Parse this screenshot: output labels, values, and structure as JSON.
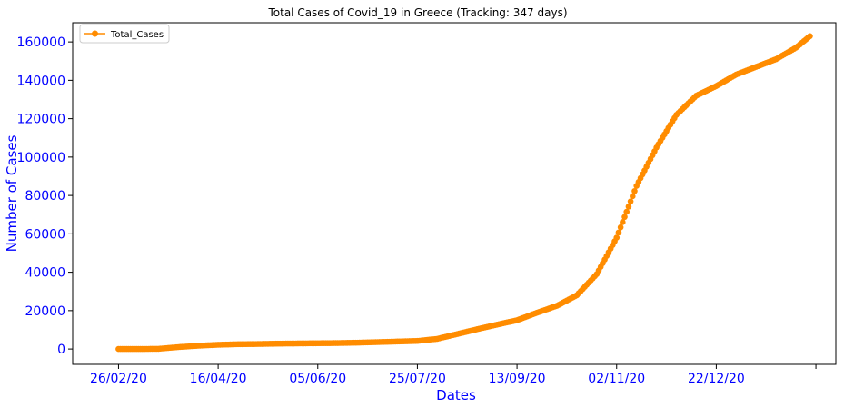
{
  "chart_data": {
    "type": "line",
    "title": "Total Cases of Covid_19 in Greece (Tracking: 347 days)",
    "xlabel": "Dates",
    "ylabel": "Number of Cases",
    "x_tick_labels": [
      "26/02/20",
      "16/04/20",
      "05/06/20",
      "25/07/20",
      "13/09/20",
      "02/11/20",
      "22/12/20"
    ],
    "x_tick_days": [
      0,
      50,
      100,
      150,
      200,
      250,
      300
    ],
    "x_extra_tick_day": 350,
    "xlim_days": [
      -23,
      360
    ],
    "ylim": [
      -8000,
      170000
    ],
    "y_ticks": [
      0,
      20000,
      40000,
      60000,
      80000,
      100000,
      120000,
      140000,
      160000
    ],
    "grid": false,
    "legend": {
      "position": "top-left",
      "entries": [
        "Total_Cases"
      ]
    },
    "colors": {
      "series": "#ff8c00",
      "axis_text": "#0000ff"
    },
    "series": [
      {
        "name": "Total_Cases",
        "marker": "circle",
        "points": [
          [
            0,
            1
          ],
          [
            10,
            7
          ],
          [
            20,
            100
          ],
          [
            30,
            1000
          ],
          [
            40,
            1700
          ],
          [
            50,
            2200
          ],
          [
            60,
            2500
          ],
          [
            70,
            2600
          ],
          [
            80,
            2800
          ],
          [
            90,
            2900
          ],
          [
            100,
            3000
          ],
          [
            110,
            3100
          ],
          [
            120,
            3300
          ],
          [
            130,
            3600
          ],
          [
            140,
            3900
          ],
          [
            150,
            4200
          ],
          [
            160,
            5300
          ],
          [
            170,
            7800
          ],
          [
            180,
            10300
          ],
          [
            190,
            12700
          ],
          [
            200,
            15000
          ],
          [
            210,
            18900
          ],
          [
            220,
            22500
          ],
          [
            230,
            28000
          ],
          [
            240,
            39000
          ],
          [
            250,
            58000
          ],
          [
            260,
            85000
          ],
          [
            270,
            105000
          ],
          [
            280,
            122000
          ],
          [
            290,
            132000
          ],
          [
            300,
            137000
          ],
          [
            310,
            143000
          ],
          [
            320,
            147000
          ],
          [
            330,
            151000
          ],
          [
            340,
            157000
          ],
          [
            347,
            163000
          ]
        ]
      }
    ]
  }
}
